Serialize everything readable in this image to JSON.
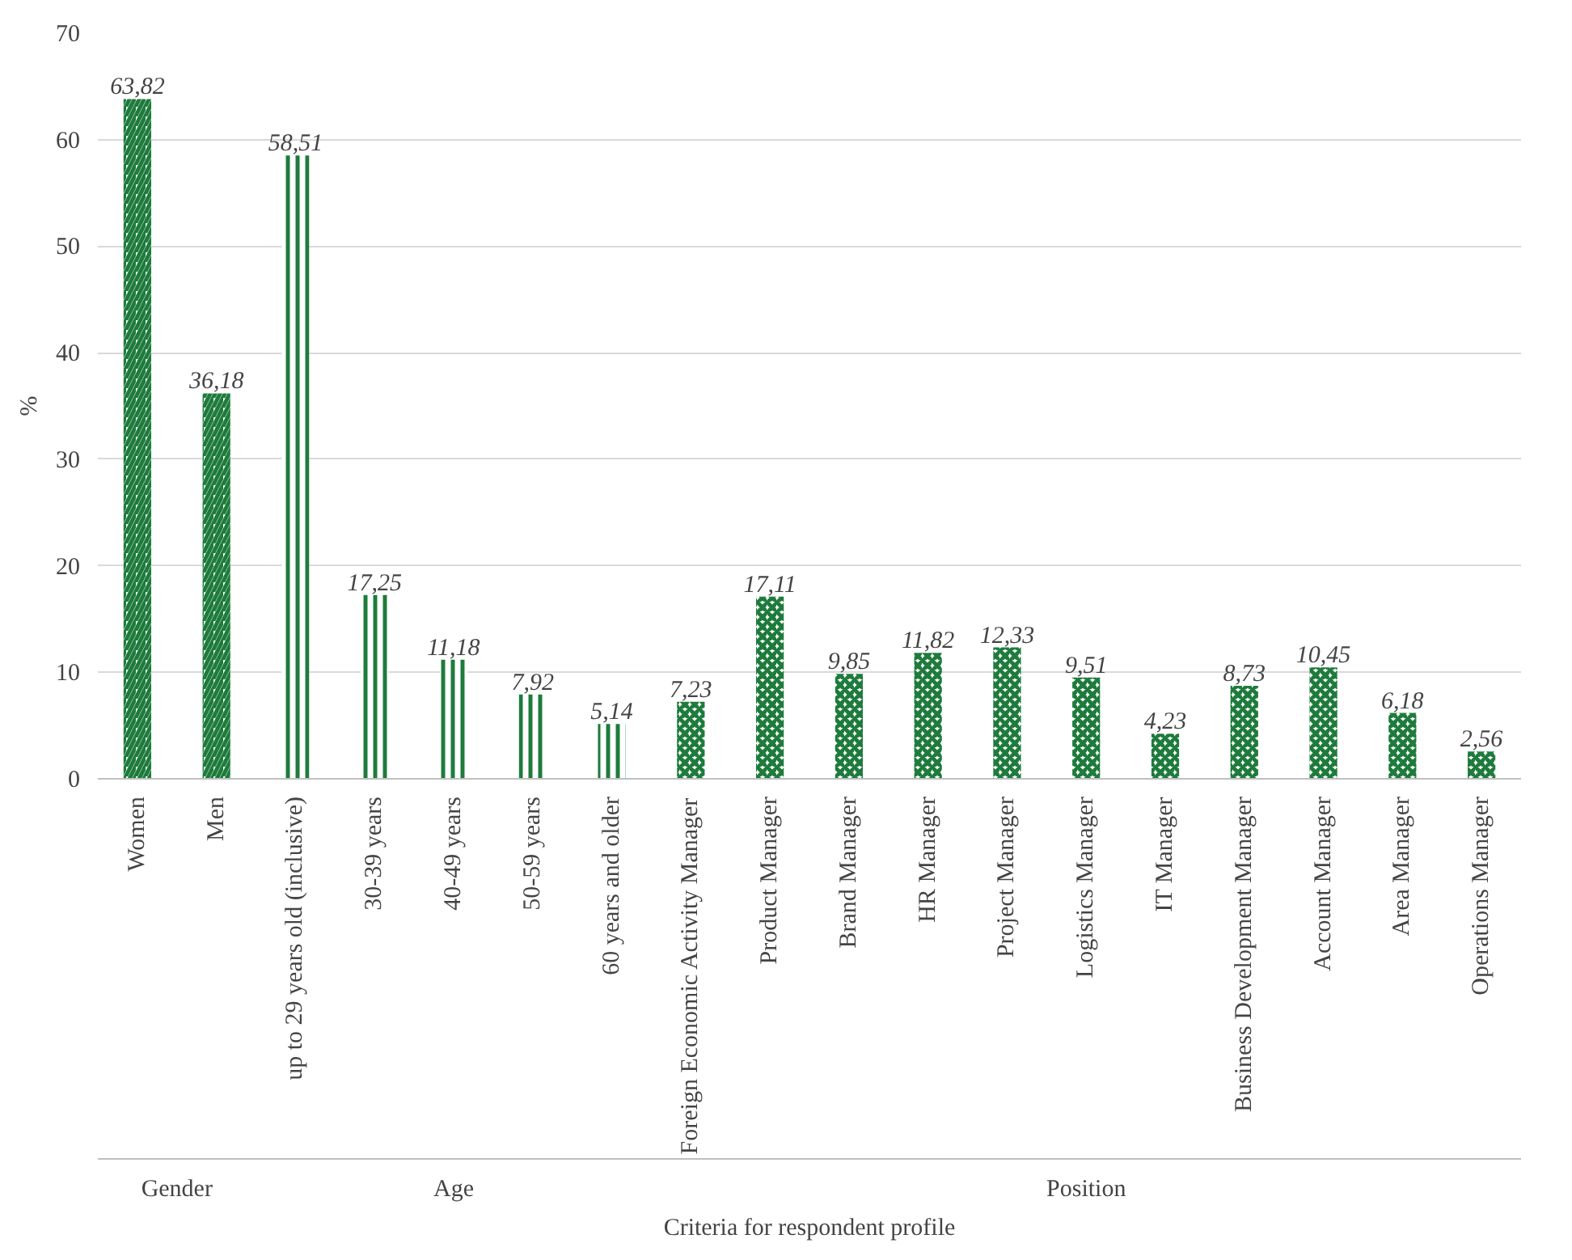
{
  "chart_data": {
    "type": "bar",
    "xlabel": "Criteria for respondent profile",
    "ylabel": "%",
    "categories": [
      "Women",
      "Men",
      "up to 29 years old (inclusive)",
      "30-39 years",
      "40-49 years",
      "50-59 years",
      "60 years and older",
      "Foreign Economic Activity Manager",
      "Product Manager",
      "Brand Manager",
      "HR Manager",
      "Project Manager",
      "Logistics Manager",
      "IT Manager",
      "Business Development Manager",
      "Account Manager",
      "Area Manager",
      "Operations Manager"
    ],
    "series": [
      {
        "color": "#1e7b3c",
        "values": [
          63.82,
          36.18,
          null,
          null,
          null,
          null,
          null,
          null,
          null,
          null,
          null,
          null,
          null,
          null,
          null,
          null,
          null,
          null
        ]
      },
      {
        "color": "#1e7b3c",
        "values": [
          null,
          null,
          58.51,
          17.25,
          11.18,
          7.92,
          5.14,
          null,
          null,
          null,
          null,
          null,
          null,
          null,
          null,
          null,
          null,
          null
        ]
      },
      {
        "color": "#1e7b3c",
        "values": [
          null,
          null,
          null,
          null,
          null,
          null,
          null,
          7.23,
          17.11,
          9.85,
          11.82,
          12.33,
          9.51,
          4.23,
          8.73,
          10.45,
          6.18,
          2.56
        ]
      }
    ],
    "value_labels": [
      "63,82",
      "36,18",
      "58,51",
      "17,25",
      "11,18",
      "7,92",
      "5,14",
      "7,23",
      "17,11",
      "9,85",
      "11,82",
      "12,33",
      "9,51",
      "4,23",
      "8,73",
      "10,45",
      "6,18",
      "2,56"
    ],
    "ylim": [
      0,
      70
    ],
    "yticks": [
      0,
      10,
      20,
      30,
      40,
      50,
      60,
      70
    ],
    "grid": "y",
    "annotations": [
      "Gender",
      "Age",
      "Position"
    ]
  }
}
